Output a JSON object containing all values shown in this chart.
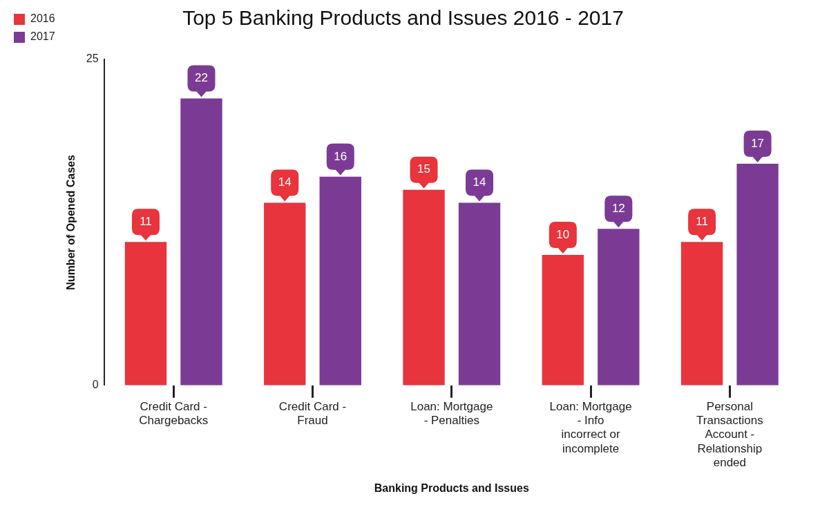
{
  "chart_data": {
    "type": "bar",
    "title": "Top 5 Banking Products and Issues 2016 - 2017",
    "xlabel": "Banking Products and Issues",
    "ylabel": "Number of Opened Cases",
    "categories": [
      "Credit Card - Chargebacks",
      "Credit Card - Fraud",
      "Loan: Mortgage - Penalties",
      "Loan: Mortgage - Info incorrect or incomplete",
      "Personal Transactions Account - Relationship ended"
    ],
    "series": [
      {
        "name": "2016",
        "color": "#e8343c",
        "values": [
          11,
          14,
          15,
          10,
          11
        ]
      },
      {
        "name": "2017",
        "color": "#7b3b95",
        "values": [
          22,
          16,
          14,
          12,
          17
        ]
      }
    ],
    "ylim": [
      0,
      25
    ],
    "yticks": [
      0,
      25
    ],
    "grid": false,
    "legend": "left",
    "data_labels": true
  }
}
